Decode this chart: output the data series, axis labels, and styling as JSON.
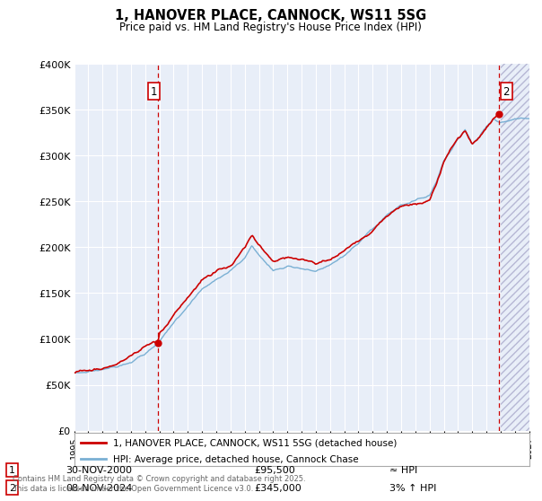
{
  "title": "1, HANOVER PLACE, CANNOCK, WS11 5SG",
  "subtitle": "Price paid vs. HM Land Registry's House Price Index (HPI)",
  "legend_line1": "1, HANOVER PLACE, CANNOCK, WS11 5SG (detached house)",
  "legend_line2": "HPI: Average price, detached house, Cannock Chase",
  "annotation1_date": "30-NOV-2000",
  "annotation1_price": "£95,500",
  "annotation1_hpi": "≈ HPI",
  "annotation2_date": "08-NOV-2024",
  "annotation2_price": "£345,000",
  "annotation2_hpi": "3% ↑ HPI",
  "footer": "Contains HM Land Registry data © Crown copyright and database right 2025.\nThis data is licensed under the Open Government Licence v3.0.",
  "ylim": [
    0,
    400000
  ],
  "yticks": [
    0,
    50000,
    100000,
    150000,
    200000,
    250000,
    300000,
    350000,
    400000
  ],
  "line_color": "#cc0000",
  "hpi_color": "#7ab0d4",
  "plot_bg": "#e8eef8",
  "grid_color": "#ffffff",
  "marker1_x": 2000.917,
  "marker1_y": 95500,
  "marker2_x": 2024.858,
  "marker2_y": 345000,
  "future_start": 2025.0,
  "xlim_start": 1995,
  "xlim_end": 2027
}
